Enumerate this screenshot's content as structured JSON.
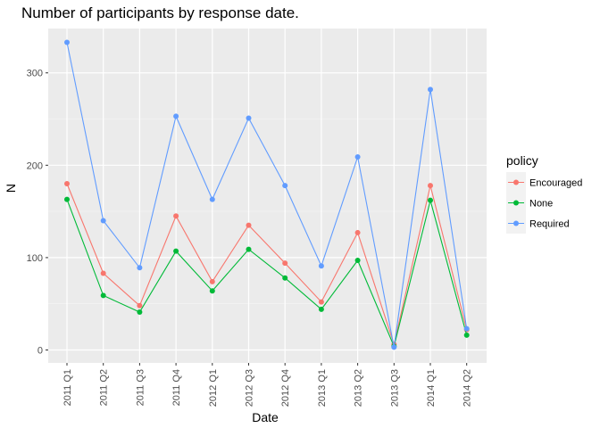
{
  "chart_data": {
    "type": "line",
    "title": "Number of participants by response date.",
    "xlabel": "Date",
    "ylabel": "N",
    "categories": [
      "2011 Q1",
      "2011 Q2",
      "2011 Q3",
      "2011 Q4",
      "2012 Q1",
      "2012 Q3",
      "2012 Q4",
      "2013 Q1",
      "2013 Q2",
      "2013 Q3",
      "2014 Q1",
      "2014 Q2"
    ],
    "ylim": [
      -14,
      348
    ],
    "yticks": [
      0,
      100,
      200,
      300
    ],
    "grid": true,
    "legend_position": "right",
    "legend_title": "policy",
    "series": [
      {
        "name": "Encouraged",
        "color": "#F8766D",
        "values": [
          180,
          83,
          48,
          145,
          74,
          135,
          94,
          52,
          127,
          6,
          178,
          22
        ]
      },
      {
        "name": "None",
        "color": "#00BA38",
        "values": [
          163,
          59,
          41,
          107,
          64,
          109,
          78,
          44,
          97,
          4,
          162,
          16
        ]
      },
      {
        "name": "Required",
        "color": "#619CFF",
        "values": [
          333,
          140,
          89,
          253,
          163,
          251,
          178,
          91,
          209,
          3,
          282,
          23
        ]
      }
    ]
  }
}
